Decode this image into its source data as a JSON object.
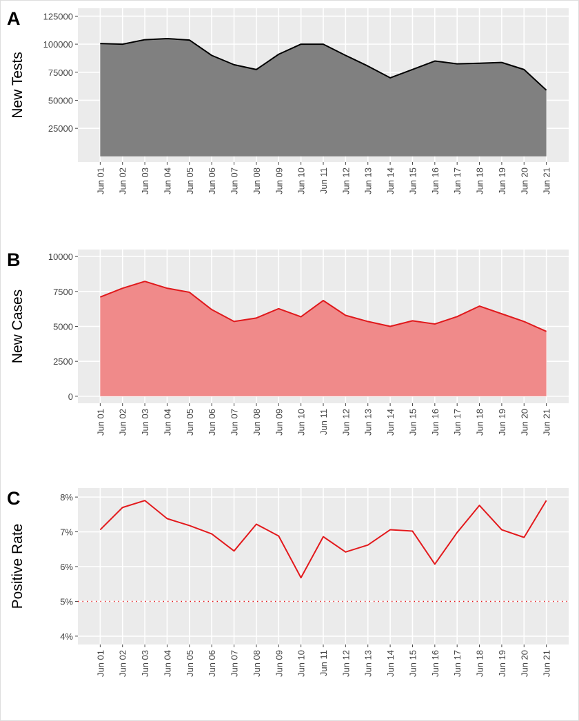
{
  "chart_data": [
    {
      "type": "area",
      "panel_label": "A",
      "y_label": "New Tests",
      "categories": [
        "Jun 01",
        "Jun 02",
        "Jun 03",
        "Jun 04",
        "Jun 05",
        "Jun 06",
        "Jun 07",
        "Jun 08",
        "Jun 09",
        "Jun 10",
        "Jun 11",
        "Jun 12",
        "Jun 13",
        "Jun 14",
        "Jun 15",
        "Jun 16",
        "Jun 17",
        "Jun 18",
        "Jun 19",
        "Jun 20",
        "Jun 21"
      ],
      "values": [
        100600,
        100000,
        104000,
        105000,
        103700,
        90000,
        81700,
        77400,
        91000,
        100000,
        100000,
        90000,
        80500,
        70000,
        77400,
        85000,
        82500,
        83000,
        83700,
        77400,
        59000
      ],
      "line_color": "#000000",
      "fill_color": "#808080",
      "ylim": [
        -5000,
        132000
      ],
      "yticks": [
        25000,
        50000,
        75000,
        100000,
        125000
      ],
      "grid": true
    },
    {
      "type": "area",
      "panel_label": "B",
      "y_label": "New Cases",
      "categories": [
        "Jun 01",
        "Jun 02",
        "Jun 03",
        "Jun 04",
        "Jun 05",
        "Jun 06",
        "Jun 07",
        "Jun 08",
        "Jun 09",
        "Jun 10",
        "Jun 11",
        "Jun 12",
        "Jun 13",
        "Jun 14",
        "Jun 15",
        "Jun 16",
        "Jun 17",
        "Jun 18",
        "Jun 19",
        "Jun 20",
        "Jun 21"
      ],
      "values": [
        7100,
        7730,
        8220,
        7730,
        7440,
        6200,
        5350,
        5600,
        6270,
        5690,
        6850,
        5790,
        5350,
        5000,
        5400,
        5170,
        5700,
        6450,
        5900,
        5350,
        4640
      ],
      "line_color": "#e0191c",
      "fill_color": "#f08a8a",
      "ylim": [
        -500,
        10500
      ],
      "yticks": [
        0,
        2500,
        5000,
        7500,
        10000
      ],
      "grid": true
    },
    {
      "type": "line",
      "panel_label": "C",
      "y_label": "Positive Rate",
      "categories": [
        "Jun 01",
        "Jun 02",
        "Jun 03",
        "Jun 04",
        "Jun 05",
        "Jun 06",
        "Jun 07",
        "Jun 08",
        "Jun 09",
        "Jun 10",
        "Jun 11",
        "Jun 12",
        "Jun 13",
        "Jun 14",
        "Jun 15",
        "Jun 16",
        "Jun 17",
        "Jun 18",
        "Jun 19",
        "Jun 20",
        "Jun 21"
      ],
      "values": [
        7.06,
        7.7,
        7.9,
        7.38,
        7.18,
        6.94,
        6.45,
        7.22,
        6.88,
        5.68,
        6.86,
        6.42,
        6.62,
        7.06,
        7.02,
        6.07,
        6.98,
        7.76,
        7.06,
        6.84,
        7.9
      ],
      "line_color": "#e3191c",
      "reference_line": {
        "value": 5,
        "color": "#e3191c",
        "style": "dotted"
      },
      "ylim": [
        3.76,
        8.26
      ],
      "yticks": [
        {
          "value": 4,
          "label": "4%"
        },
        {
          "value": 5,
          "label": "5%"
        },
        {
          "value": 6,
          "label": "6%"
        },
        {
          "value": 7,
          "label": "7%"
        },
        {
          "value": 8,
          "label": "8%"
        }
      ],
      "grid": true
    }
  ]
}
